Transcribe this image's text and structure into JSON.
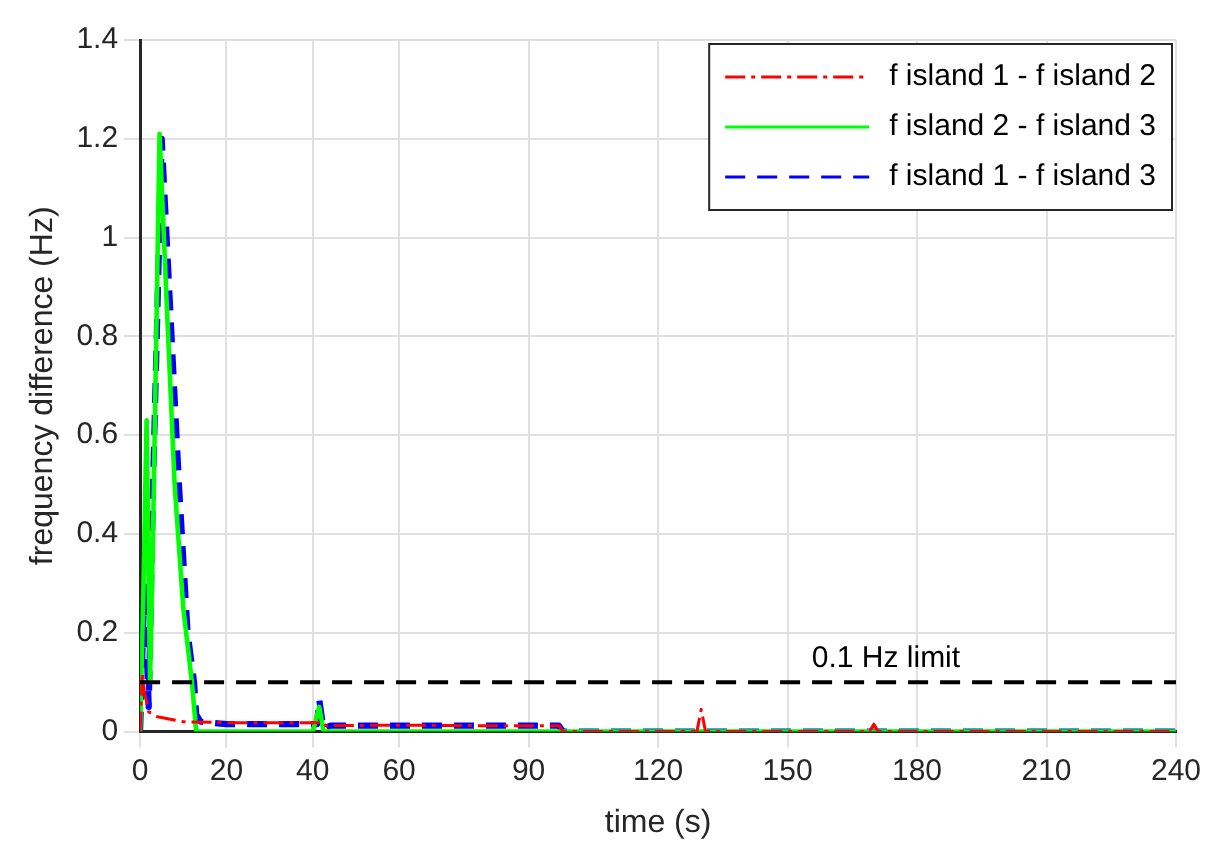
{
  "chart_data": {
    "type": "line",
    "xlabel": "time (s)",
    "ylabel": "frequency difference (Hz)",
    "xlim": [
      0,
      240
    ],
    "xticks": [
      0,
      20,
      40,
      60,
      90,
      120,
      150,
      180,
      210,
      240
    ],
    "ylim": [
      0,
      1.4
    ],
    "yticks": [
      0,
      0.2,
      0.4,
      0.6,
      0.8,
      1,
      1.2,
      1.4
    ],
    "grid": true,
    "legend": "top right",
    "ref_lines": [
      {
        "axis": "y",
        "value": 0.1,
        "label": "0.1 Hz limit",
        "color": "#000000",
        "line_style": "dashed"
      }
    ],
    "series": [
      {
        "name": "f island 1 - f island 2",
        "color": "#ff0000",
        "line_style": "dashdot",
        "x": [
          0,
          0.5,
          1,
          2,
          4,
          7,
          10,
          20,
          30,
          41,
          42,
          43,
          60,
          80,
          97,
          98,
          120,
          129,
          130,
          131,
          160,
          169,
          170,
          171,
          240
        ],
        "values": [
          0,
          0.12,
          0.08,
          0.04,
          0.03,
          0.025,
          0.02,
          0.018,
          0.018,
          0.018,
          0.02,
          0.012,
          0.013,
          0.012,
          0.012,
          0,
          0,
          0,
          0.045,
          0,
          0,
          0,
          0.015,
          0,
          0
        ]
      },
      {
        "name": "f island 2 - f island 3",
        "color": "#00ff00",
        "line_style": "solid",
        "x": [
          0,
          0.8,
          1.5,
          2.3,
          3,
          4.5,
          6,
          8,
          10,
          12,
          13,
          20,
          40,
          41.5,
          42.5,
          60,
          120,
          240
        ],
        "values": [
          0,
          0.3,
          0.63,
          0.1,
          0.4,
          1.21,
          0.9,
          0.5,
          0.25,
          0.1,
          0,
          0,
          0,
          0.05,
          0,
          0,
          0,
          0
        ]
      },
      {
        "name": "f island 1 - f island 3",
        "color": "#0000ff",
        "line_style": "dashed",
        "x": [
          0,
          1,
          2,
          3,
          5,
          7,
          9,
          11,
          12.5,
          13,
          14,
          20,
          30,
          41,
          41.5,
          42.5,
          44,
          60,
          80,
          97,
          98,
          240
        ],
        "values": [
          0,
          0.3,
          0.05,
          0.5,
          1.2,
          0.85,
          0.5,
          0.2,
          0.1,
          0.035,
          0.02,
          0.015,
          0.015,
          0.015,
          0.065,
          0.005,
          0.012,
          0.012,
          0.012,
          0.012,
          0,
          0
        ]
      }
    ]
  }
}
